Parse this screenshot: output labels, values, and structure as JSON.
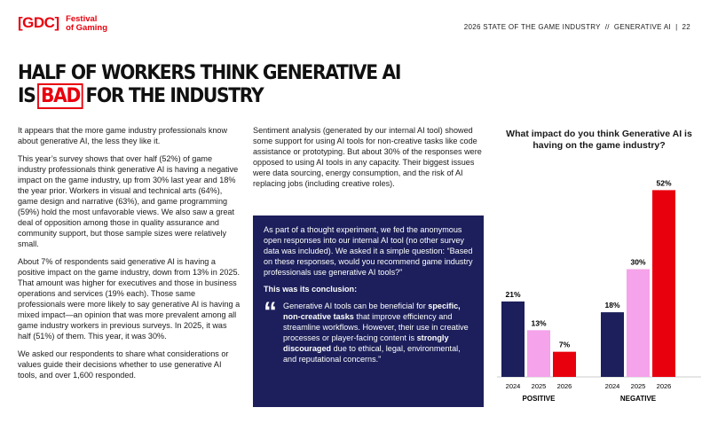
{
  "header": {
    "logo_mark": "[GDC]",
    "logo_line1": "Festival",
    "logo_line2": "of Gaming",
    "running_title": "2026 STATE OF THE GAME INDUSTRY  //  GENERATIVE AI",
    "page_number": "22"
  },
  "headline": {
    "line1": "HALF OF WORKERS THINK GENERATIVE AI",
    "prefix": "IS",
    "highlight": "BAD",
    "suffix": "FOR THE INDUSTRY"
  },
  "left_column": {
    "paragraphs": [
      "It appears that the more game industry professionals know about generative AI, the less they like it.",
      "This year’s survey shows that over half (52%) of game industry professionals think generative AI is having a negative impact on the game industry, up from 30% last year and 18% the year prior. Workers in visual and technical arts (64%), game design and narrative (63%), and game programming (59%) hold the most unfavorable views. We also saw a great deal of opposition among those in quality assurance and community support, but those sample sizes were relatively small.",
      "About 7% of respondents said generative AI is having a positive impact on the game industry, down from 13% in 2025. That amount was higher for executives and those in business operations and services (19% each). Those same professionals were more likely to say generative AI is having a mixed impact—an opinion that was more prevalent among all game industry workers in previous surveys. In 2025, it was half (51%) of them. This year, it was 30%.",
      "We asked our respondents to share what considerations or values guide their decisions whether to use generative AI tools, and over 1,600 responded."
    ]
  },
  "middle_column": {
    "paragraph": "Sentiment analysis (generated by our internal AI tool) showed some support for using AI tools for non-creative tasks like code assistance or prototyping. But about 30% of the responses were opposed to using AI tools in any capacity. Their biggest issues were data sourcing, energy consumption, and the risk of AI replacing jobs (including creative roles).",
    "callout": {
      "intro": "As part of a thought experiment, we fed the anonymous open responses into our internal AI tool (no other survey data was included). We asked it a simple question: “Based on these responses, would you recommend game industry professionals use generative AI tools?”",
      "conclusion_label": "This was its conclusion:",
      "quote_mark": "“",
      "quote_parts": [
        "Generative AI tools can be beneficial for ",
        "specific, non-creative tasks",
        " that improve efficiency and streamline workflows. However, their use in creative processes or player-facing content is ",
        "strongly discouraged",
        " due to ethical, legal, environmental, and reputational concerns.”"
      ]
    }
  },
  "chart_data": {
    "type": "bar",
    "title": "What impact do you think Generative AI is having on the game industry?",
    "colors": [
      "#1c1f5b",
      "#f5a3ea",
      "#e8000d"
    ],
    "groups": [
      {
        "name": "POSITIVE",
        "categories": [
          "2024",
          "2025",
          "2026"
        ],
        "values": [
          21,
          13,
          7
        ],
        "value_labels": [
          "21%",
          "13%",
          "7%"
        ]
      },
      {
        "name": "NEGATIVE",
        "categories": [
          "2024",
          "2025",
          "2026"
        ],
        "values": [
          18,
          30,
          52
        ],
        "value_labels": [
          "18%",
          "30%",
          "52%"
        ]
      }
    ]
  }
}
